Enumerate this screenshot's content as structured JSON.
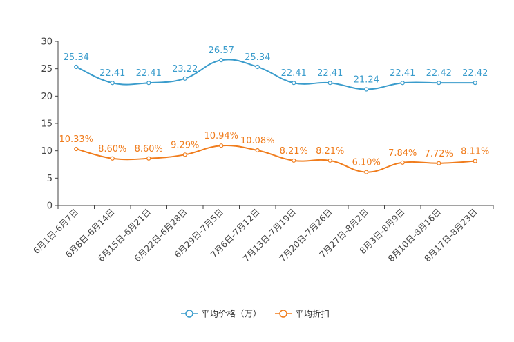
{
  "chart_data": {
    "type": "line",
    "categories": [
      "6月1日-6月7日",
      "6月8日-6月14日",
      "6月15日-6月21日",
      "6月22日-6月28日",
      "6月29日-7月5日",
      "7月6日-7月12日",
      "7月13日-7月19日",
      "7月20日-7月26日",
      "7月27日-8月2日",
      "8月3日-8月9日",
      "8月10日-8月16日",
      "8月17日-8月23日"
    ],
    "ylim": [
      0,
      30
    ],
    "yticks": [
      "0",
      "5",
      "10",
      "15",
      "20",
      "25",
      "30"
    ],
    "series": [
      {
        "name": "平均价格（万）",
        "color": "#3a9ccc",
        "values": [
          25.34,
          22.41,
          22.41,
          23.22,
          26.57,
          25.34,
          22.41,
          22.41,
          21.24,
          22.41,
          22.42,
          22.42
        ],
        "labels": [
          "25.34",
          "22.41",
          "22.41",
          "23.22",
          "26.57",
          "25.34",
          "22.41",
          "22.41",
          "21.24",
          "22.41",
          "22.42",
          "22.42"
        ]
      },
      {
        "name": "平均折扣",
        "color": "#f07c1c",
        "values": [
          10.33,
          8.6,
          8.6,
          9.29,
          10.94,
          10.08,
          8.21,
          8.21,
          6.1,
          7.84,
          7.72,
          8.11
        ],
        "labels": [
          "10.33%",
          "8.60%",
          "8.60%",
          "9.29%",
          "10.94%",
          "10.08%",
          "8.21%",
          "8.21%",
          "6.10%",
          "7.84%",
          "7.72%",
          "8.11%"
        ]
      }
    ]
  }
}
